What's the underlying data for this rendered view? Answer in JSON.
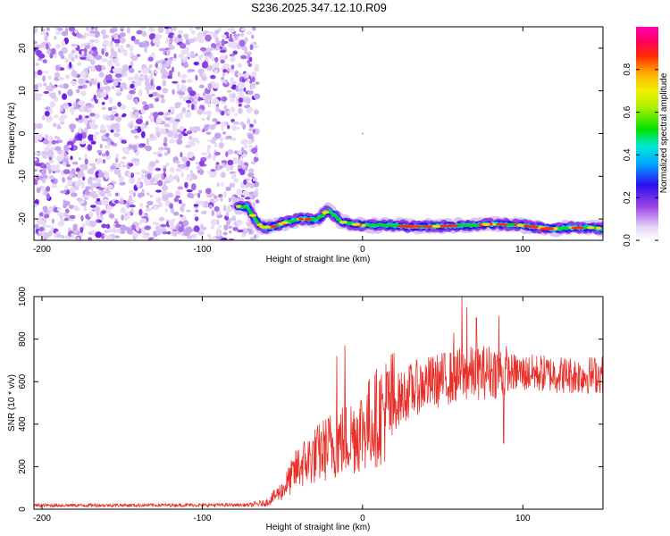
{
  "title": "S236.2025.347.12.10.R09",
  "chart_data": [
    {
      "type": "heatmap",
      "name": "spectrogram",
      "xlabel": "Height of straight line (km)",
      "ylabel": "Frequency (Hz)",
      "xlim": [
        -205,
        150
      ],
      "ylim": [
        -25,
        25
      ],
      "xticks": [
        -200,
        -100,
        0,
        100
      ],
      "yticks": [
        -20,
        -10,
        0,
        10,
        20
      ],
      "noise_region_x": [
        -205,
        -70
      ],
      "signal_track": {
        "x": [
          -78,
          -72,
          -68,
          -64,
          -60,
          -56,
          -50,
          -44,
          -40,
          -36,
          -30,
          -26,
          -22,
          -18,
          -14,
          -10,
          -6,
          0,
          10,
          20,
          30,
          40,
          50,
          60,
          70,
          80,
          90,
          100,
          110,
          120,
          130,
          140,
          150
        ],
        "freq": [
          -17,
          -17.2,
          -19.5,
          -21.5,
          -22,
          -21.8,
          -21,
          -20.5,
          -20,
          -20,
          -20.2,
          -19.5,
          -18,
          -19,
          -20.5,
          -21,
          -21.2,
          -21.5,
          -21.5,
          -21.5,
          -21.8,
          -21.8,
          -21.7,
          -21.5,
          -21.5,
          -21.2,
          -21.3,
          -21.5,
          -22,
          -22.3,
          -22,
          -22,
          -22.2
        ]
      },
      "colorbar": {
        "label": "Normalized spectral amplitude",
        "ticks": [
          "0.0",
          "0.2",
          "0.4",
          "0.6",
          "0.8"
        ],
        "tick_values": [
          0,
          0.2,
          0.4,
          0.6,
          0.8
        ],
        "range": [
          0,
          1
        ]
      }
    },
    {
      "type": "line",
      "name": "snr",
      "xlabel": "Height of straight line (km)",
      "ylabel": "SNR (10 * v/v)",
      "xlim": [
        -205,
        150
      ],
      "ylim": [
        0,
        1000
      ],
      "xticks": [
        -200,
        -100,
        0,
        100
      ],
      "yticks": [
        0,
        200,
        400,
        600,
        800,
        1000
      ],
      "color": "#e8302a",
      "series": [
        {
          "name": "SNR",
          "envelope_x": [
            -205,
            -70,
            -60,
            -50,
            -40,
            -30,
            -20,
            -10,
            0,
            10,
            20,
            30,
            40,
            50,
            60,
            70,
            80,
            90,
            100,
            110,
            120,
            130,
            140,
            150
          ],
          "envelope_y": [
            18,
            20,
            30,
            90,
            200,
            250,
            300,
            330,
            380,
            440,
            500,
            560,
            590,
            610,
            630,
            640,
            650,
            645,
            640,
            640,
            635,
            630,
            630,
            635
          ],
          "spikes_x": [
            -11,
            -16,
            57,
            62,
            65,
            71,
            85,
            88
          ],
          "spikes_y": [
            770,
            720,
            830,
            1000,
            950,
            900,
            910,
            310
          ]
        }
      ]
    }
  ]
}
